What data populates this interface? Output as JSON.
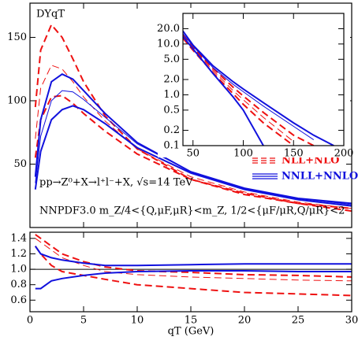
{
  "chart_data": [
    {
      "type": "line",
      "title": "DYqT",
      "annotations": [
        "pp→Z⁰+X→l⁺l⁻+X,  √s=14 TeV",
        "NNPDF3.0   m_Z/4<{Q,μF,μR}<m_Z,  1/2<{μF/μR,Q/μR}<2"
      ],
      "legend": [
        {
          "name": "NLL+NLO",
          "color": "#ee1111",
          "dash": true
        },
        {
          "name": "NNLL+NNLO",
          "color": "#1111dd",
          "dash": false
        }
      ],
      "x": [
        0.5,
        1,
        2,
        3,
        4,
        5,
        7,
        10,
        15,
        20,
        25,
        30
      ],
      "series": [
        {
          "color": "#ee1111",
          "dash": true,
          "width": 2,
          "values": [
            95,
            140,
            160,
            150,
            133,
            115,
            88,
            62,
            38,
            26,
            19,
            15
          ]
        },
        {
          "color": "#ee1111",
          "dash": true,
          "width": 1,
          "values": [
            70,
            110,
            128,
            125,
            115,
            103,
            84,
            62,
            40,
            28,
            20,
            15
          ]
        },
        {
          "color": "#ee1111",
          "dash": true,
          "width": 2,
          "values": [
            55,
            85,
            103,
            104,
            98,
            90,
            76,
            58,
            38,
            27,
            19,
            13
          ]
        },
        {
          "color": "#1111dd",
          "dash": false,
          "width": 2,
          "values": [
            40,
            85,
            115,
            121,
            117,
            108,
            90,
            67,
            44,
            31,
            23,
            19
          ]
        },
        {
          "color": "#1111dd",
          "dash": false,
          "width": 1,
          "values": [
            35,
            72,
            100,
            108,
            107,
            101,
            87,
            66,
            44,
            31,
            23,
            18
          ]
        },
        {
          "color": "#1111dd",
          "dash": false,
          "width": 2,
          "values": [
            30,
            60,
            85,
            93,
            96,
            93,
            82,
            63,
            43,
            30,
            22,
            17
          ]
        }
      ],
      "xlim": [
        0,
        30
      ],
      "ylim": [
        0,
        177
      ],
      "xticks": [
        0,
        5,
        10,
        15,
        20,
        25,
        30
      ],
      "yticks": [
        50,
        100,
        150
      ]
    },
    {
      "type": "line",
      "log_y": true,
      "x": [
        40,
        50,
        70,
        90,
        100,
        120,
        150,
        170,
        190
      ],
      "series": [
        {
          "color": "#ee1111",
          "dash": true,
          "width": 2,
          "values": [
            15,
            8.5,
            3.3,
            1.4,
            0.95,
            0.45,
            0.16,
            0.1,
            null
          ]
        },
        {
          "color": "#ee1111",
          "dash": true,
          "width": 1,
          "values": [
            14,
            8,
            3,
            1.2,
            0.8,
            0.36,
            0.12,
            null,
            null
          ]
        },
        {
          "color": "#ee1111",
          "dash": true,
          "width": 2,
          "values": [
            13,
            7.5,
            2.7,
            1.05,
            0.65,
            0.28,
            0.1,
            null,
            null
          ]
        },
        {
          "color": "#1111dd",
          "dash": false,
          "width": 2,
          "values": [
            18,
            9.5,
            3.7,
            1.8,
            1.3,
            0.7,
            0.28,
            0.16,
            0.1
          ]
        },
        {
          "color": "#1111dd",
          "dash": false,
          "width": 1,
          "values": [
            16,
            9,
            3.4,
            1.6,
            1.15,
            0.6,
            0.24,
            0.13,
            null
          ]
        },
        {
          "color": "#1111dd",
          "dash": false,
          "width": 2,
          "values": [
            14,
            8,
            2.6,
            0.9,
            0.5,
            0.1,
            null,
            null,
            null
          ]
        }
      ],
      "xlim": [
        40,
        200
      ],
      "ylim": [
        0.1,
        40
      ],
      "xticks": [
        50,
        100,
        150,
        200
      ],
      "yticks": [
        {
          "value": 20,
          "label": "20.0"
        },
        {
          "value": 10,
          "label": "10.0"
        },
        {
          "value": 5,
          "label": "5.0"
        },
        {
          "value": 2,
          "label": "2.0"
        },
        {
          "value": 1,
          "label": "1.0"
        },
        0.5,
        0.2,
        0.1
      ]
    },
    {
      "type": "line",
      "x_label": "qT (GeV)",
      "reference_line": 1,
      "x": [
        0.5,
        1,
        2,
        3,
        5,
        7,
        10,
        15,
        20,
        25,
        30
      ],
      "series": [
        {
          "color": "#ee1111",
          "dash": true,
          "width": 2,
          "values": [
            1.45,
            1.4,
            1.3,
            1.2,
            1.1,
            1.03,
            0.98,
            0.96,
            0.93,
            0.92,
            0.9
          ]
        },
        {
          "color": "#ee1111",
          "dash": true,
          "width": 1,
          "values": [
            1.4,
            1.35,
            1.25,
            1.15,
            1.05,
            0.97,
            0.93,
            0.9,
            0.88,
            0.86,
            0.85
          ]
        },
        {
          "color": "#ee1111",
          "dash": true,
          "width": 2,
          "values": [
            1.3,
            1.2,
            1.05,
            0.97,
            0.92,
            0.87,
            0.8,
            0.75,
            0.7,
            0.68,
            0.66
          ]
        },
        {
          "color": "#1111dd",
          "dash": false,
          "width": 2,
          "values": [
            1.3,
            1.2,
            1.15,
            1.12,
            1.08,
            1.05,
            1.05,
            1.06,
            1.07,
            1.07,
            1.07
          ]
        },
        {
          "color": "#1111dd",
          "dash": false,
          "width": 2,
          "values": [
            0.75,
            0.75,
            0.85,
            0.88,
            0.92,
            0.95,
            0.97,
            0.98,
            0.98,
            0.97,
            0.97
          ]
        }
      ],
      "xlim": [
        0,
        30
      ],
      "ylim": [
        0.45,
        1.48
      ],
      "xticks": [
        0,
        5,
        10,
        15,
        20,
        25,
        30
      ],
      "yticks": [
        1.4,
        1.2,
        {
          "value": 1,
          "label": "1.0"
        },
        0.8,
        0.6
      ]
    }
  ]
}
